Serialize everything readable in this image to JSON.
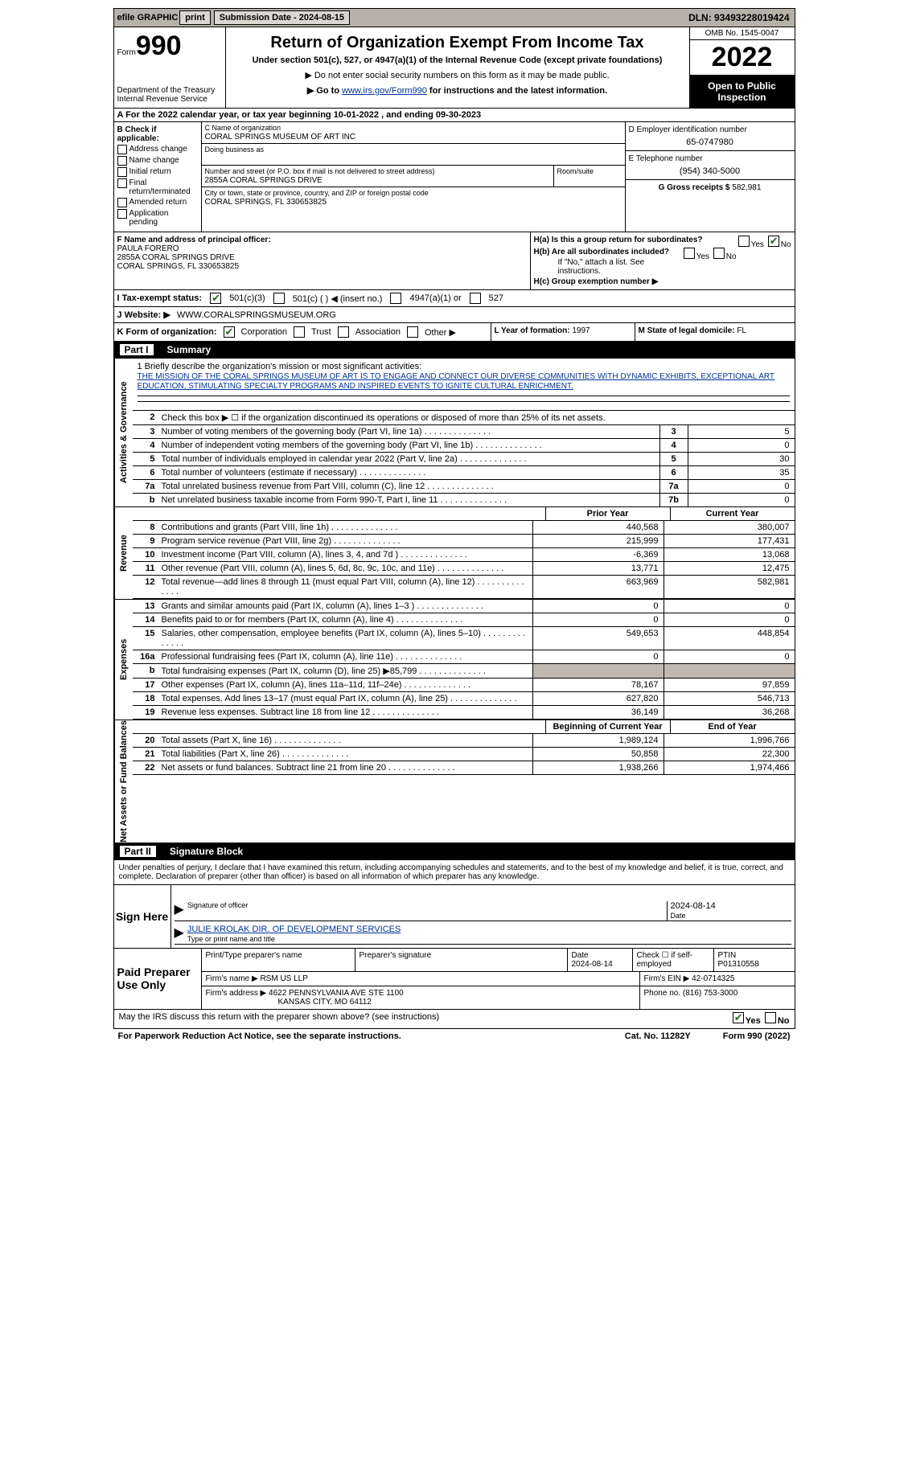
{
  "topbar": {
    "efile": "efile GRAPHIC",
    "print_btn": "print",
    "sub_date_label": "Submission Date - 2024-08-15",
    "dln_label": "DLN: 93493228019424"
  },
  "header": {
    "form_word": "Form",
    "form_num": "990",
    "dept": "Department of the Treasury",
    "irs": "Internal Revenue Service",
    "title": "Return of Organization Exempt From Income Tax",
    "subtitle": "Under section 501(c), 527, or 4947(a)(1) of the Internal Revenue Code (except private foundations)",
    "note1": "▶ Do not enter social security numbers on this form as it may be made public.",
    "note2_pre": "▶ Go to ",
    "note2_link": "www.irs.gov/Form990",
    "note2_post": " for instructions and the latest information.",
    "omb": "OMB No. 1545-0047",
    "year": "2022",
    "open": "Open to Public Inspection"
  },
  "line_a": "A For the 2022 calendar year, or tax year beginning 10-01-2022 , and ending 09-30-2023",
  "col_b": {
    "heading": "B Check if applicable:",
    "items": [
      "Address change",
      "Name change",
      "Initial return",
      "Final return/terminated",
      "Amended return",
      "Application pending"
    ]
  },
  "col_c": {
    "name_label": "C Name of organization",
    "name": "CORAL SPRINGS MUSEUM OF ART INC",
    "dba_label": "Doing business as",
    "addr_label": "Number and street (or P.O. box if mail is not delivered to street address)",
    "room_label": "Room/suite",
    "addr": "2855A CORAL SPRINGS DRIVE",
    "city_label": "City or town, state or province, country, and ZIP or foreign postal code",
    "city": "CORAL SPRINGS, FL  330653825"
  },
  "col_d": {
    "ein_label": "D Employer identification number",
    "ein": "65-0747980",
    "tel_label": "E Telephone number",
    "tel": "(954) 340-5000",
    "gross_label": "G Gross receipts $",
    "gross": "582,981"
  },
  "block_f": {
    "f_label": "F Name and address of principal officer:",
    "name": "PAULA FORERO",
    "addr1": "2855A CORAL SPRINGS DRIVE",
    "addr2": "CORAL SPRINGS, FL  330653825",
    "ha": "H(a)  Is this a group return for subordinates?",
    "hb": "H(b)  Are all subordinates included?",
    "hb_note": "If \"No,\" attach a list. See instructions.",
    "hc": "H(c)  Group exemption number ▶",
    "yes": "Yes",
    "no": "No"
  },
  "row_i": {
    "label": "I  Tax-exempt status:",
    "o1": "501(c)(3)",
    "o2": "501(c) (  ) ◀ (insert no.)",
    "o3": "4947(a)(1) or",
    "o4": "527"
  },
  "row_j": {
    "label": "J  Website: ▶",
    "value": "WWW.CORALSPRINGSMUSEUM.ORG"
  },
  "row_k": {
    "label": "K Form of organization:",
    "o1": "Corporation",
    "o2": "Trust",
    "o3": "Association",
    "o4": "Other ▶",
    "l_label": "L Year of formation:",
    "l_val": "1997",
    "m_label": "M State of legal domicile:",
    "m_val": "FL"
  },
  "parts": {
    "p1": "Part I",
    "p1_title": "Summary",
    "p2": "Part II",
    "p2_title": "Signature Block"
  },
  "tabs": {
    "activities": "Activities & Governance",
    "revenue": "Revenue",
    "expenses": "Expenses",
    "netassets": "Net Assets or Fund Balances"
  },
  "mission": {
    "label": "1  Briefly describe the organization's mission or most significant activities:",
    "text": "THE MISSION OF THE CORAL SPRINGS MUSEUM OF ART IS TO ENGAGE AND CONNECT OUR DIVERSE COMMUNITIES WITH DYNAMIC EXHIBITS, EXCEPTIONAL ART EDUCATION, STIMULATING SPECIALTY PROGRAMS AND INSPIRED EVENTS TO IGNITE CULTURAL ENRICHMENT."
  },
  "gov_rows": [
    {
      "n": "2",
      "t": "Check this box ▶ ☐ if the organization discontinued its operations or disposed of more than 25% of its net assets.",
      "m": "",
      "v": ""
    },
    {
      "n": "3",
      "t": "Number of voting members of the governing body (Part VI, line 1a)",
      "m": "3",
      "v": "5"
    },
    {
      "n": "4",
      "t": "Number of independent voting members of the governing body (Part VI, line 1b)",
      "m": "4",
      "v": "0"
    },
    {
      "n": "5",
      "t": "Total number of individuals employed in calendar year 2022 (Part V, line 2a)",
      "m": "5",
      "v": "30"
    },
    {
      "n": "6",
      "t": "Total number of volunteers (estimate if necessary)",
      "m": "6",
      "v": "35"
    },
    {
      "n": "7a",
      "t": "Total unrelated business revenue from Part VIII, column (C), line 12",
      "m": "7a",
      "v": "0"
    },
    {
      "n": "b",
      "t": "Net unrelated business taxable income from Form 990-T, Part I, line 11",
      "m": "7b",
      "v": "0"
    }
  ],
  "col_headers": {
    "prior": "Prior Year",
    "current": "Current Year",
    "boy": "Beginning of Current Year",
    "eoy": "End of Year"
  },
  "rev_rows": [
    {
      "n": "8",
      "t": "Contributions and grants (Part VIII, line 1h)",
      "p": "440,568",
      "c": "380,007"
    },
    {
      "n": "9",
      "t": "Program service revenue (Part VIII, line 2g)",
      "p": "215,999",
      "c": "177,431"
    },
    {
      "n": "10",
      "t": "Investment income (Part VIII, column (A), lines 3, 4, and 7d )",
      "p": "-6,369",
      "c": "13,068"
    },
    {
      "n": "11",
      "t": "Other revenue (Part VIII, column (A), lines 5, 6d, 8c, 9c, 10c, and 11e)",
      "p": "13,771",
      "c": "12,475"
    },
    {
      "n": "12",
      "t": "Total revenue—add lines 8 through 11 (must equal Part VIII, column (A), line 12)",
      "p": "663,969",
      "c": "582,981"
    }
  ],
  "exp_rows": [
    {
      "n": "13",
      "t": "Grants and similar amounts paid (Part IX, column (A), lines 1–3 )",
      "p": "0",
      "c": "0"
    },
    {
      "n": "14",
      "t": "Benefits paid to or for members (Part IX, column (A), line 4)",
      "p": "0",
      "c": "0"
    },
    {
      "n": "15",
      "t": "Salaries, other compensation, employee benefits (Part IX, column (A), lines 5–10)",
      "p": "549,653",
      "c": "448,854"
    },
    {
      "n": "16a",
      "t": "Professional fundraising fees (Part IX, column (A), line 11e)",
      "p": "0",
      "c": "0"
    },
    {
      "n": "b",
      "t": "Total fundraising expenses (Part IX, column (D), line 25) ▶85,799",
      "p": "",
      "c": "",
      "shade": true
    },
    {
      "n": "17",
      "t": "Other expenses (Part IX, column (A), lines 11a–11d, 11f–24e)",
      "p": "78,167",
      "c": "97,859"
    },
    {
      "n": "18",
      "t": "Total expenses. Add lines 13–17 (must equal Part IX, column (A), line 25)",
      "p": "627,820",
      "c": "546,713"
    },
    {
      "n": "19",
      "t": "Revenue less expenses. Subtract line 18 from line 12",
      "p": "36,149",
      "c": "36,268"
    }
  ],
  "net_rows": [
    {
      "n": "20",
      "t": "Total assets (Part X, line 16)",
      "p": "1,989,124",
      "c": "1,996,766"
    },
    {
      "n": "21",
      "t": "Total liabilities (Part X, line 26)",
      "p": "50,858",
      "c": "22,300"
    },
    {
      "n": "22",
      "t": "Net assets or fund balances. Subtract line 21 from line 20",
      "p": "1,938,266",
      "c": "1,974,466"
    }
  ],
  "sig": {
    "penalty": "Under penalties of perjury, I declare that I have examined this return, including accompanying schedules and statements, and to the best of my knowledge and belief, it is true, correct, and complete. Declaration of preparer (other than officer) is based on all information of which preparer has any knowledge.",
    "sign_here": "Sign Here",
    "sig_officer": "Signature of officer",
    "date": "2024-08-14",
    "date_label": "Date",
    "name_title": "JULIE KROLAK  DIR. OF DEVELOPMENT SERVICES",
    "type_name": "Type or print name and title"
  },
  "prep": {
    "label": "Paid Preparer Use Only",
    "pt_name_label": "Print/Type preparer's name",
    "pt_sig_label": "Preparer's signature",
    "pt_date_label": "Date",
    "pt_date": "2024-08-14",
    "pt_self": "Check ☐ if self-employed",
    "ptin_label": "PTIN",
    "ptin": "P01310558",
    "firm_name_label": "Firm's name   ▶",
    "firm_name": "RSM US LLP",
    "firm_ein_label": "Firm's EIN ▶",
    "firm_ein": "42-0714325",
    "firm_addr_label": "Firm's address ▶",
    "firm_addr1": "4622 PENNSYLVANIA AVE STE 1100",
    "firm_addr2": "KANSAS CITY, MO  64112",
    "phone_label": "Phone no.",
    "phone": "(816) 753-3000"
  },
  "footer": {
    "discuss": "May the IRS discuss this return with the preparer shown above? (see instructions)",
    "yes": "Yes",
    "no": "No",
    "pra": "For Paperwork Reduction Act Notice, see the separate instructions.",
    "cat": "Cat. No. 11282Y",
    "form": "Form 990 (2022)"
  }
}
